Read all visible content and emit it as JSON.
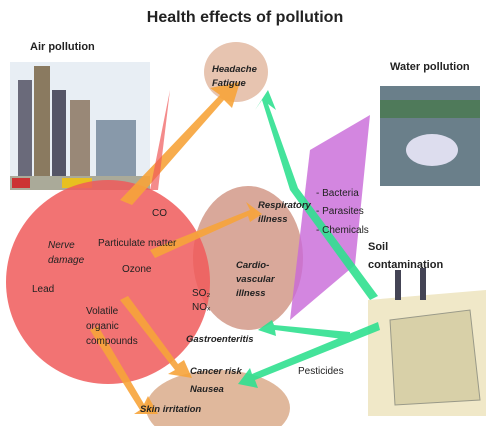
{
  "title": "Health effects of pollution",
  "sources": {
    "air": "Air pollution",
    "water": "Water pollution",
    "soil": [
      "Soil",
      "contamination"
    ]
  },
  "effects": {
    "headache": [
      "Headache",
      "Fatigue"
    ],
    "respiratory": [
      "Respiratory",
      "illness"
    ],
    "cardio": [
      "Cardio-",
      "vascular",
      "illness"
    ],
    "gastro": "Gastroenteritis",
    "cancer": "Cancer risk",
    "nausea": "Nausea",
    "skin": "Skin irritation"
  },
  "air_pollutants": {
    "co": "CO",
    "pm": "Particulate matter",
    "ozone": "Ozone",
    "nerve": [
      "Nerve",
      "damage"
    ],
    "lead": "Lead",
    "voc": [
      "Volatile",
      "organic",
      "compounds"
    ],
    "so2": "SO₂",
    "nox": "NOₓ"
  },
  "water_pollutants": [
    "- Bacteria",
    "- Parasites",
    "- Chemicals"
  ],
  "soil_pollutants": [
    "Pesticides"
  ]
}
